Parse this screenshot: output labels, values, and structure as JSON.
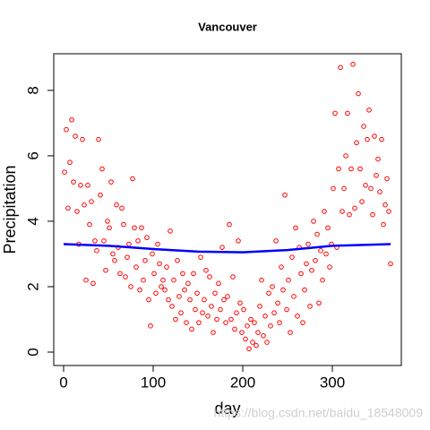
{
  "chart_data": {
    "type": "scatter",
    "title": "Vancouver",
    "xlabel": "day",
    "ylabel": "Precipitation",
    "annotation": "https://blog.csdn.net/baidu_18548009",
    "xlim": [
      -11,
      377
    ],
    "ylim": [
      -0.41,
      9.12
    ],
    "xticks": [
      0,
      100,
      200,
      300
    ],
    "yticks": [
      0,
      2,
      4,
      6,
      8
    ],
    "series": [
      {
        "type": "scatter",
        "color": "#ff0000",
        "x": [
          1,
          3,
          5,
          7,
          9,
          11,
          13,
          15,
          17,
          19,
          21,
          23,
          25,
          27,
          29,
          31,
          33,
          35,
          37,
          39,
          41,
          43,
          45,
          47,
          49,
          51,
          53,
          55,
          57,
          59,
          61,
          63,
          65,
          67,
          69,
          71,
          73,
          75,
          77,
          79,
          81,
          83,
          85,
          87,
          89,
          91,
          93,
          95,
          97,
          99,
          101,
          103,
          105,
          107,
          109,
          111,
          113,
          115,
          117,
          119,
          121,
          123,
          125,
          127,
          129,
          131,
          133,
          135,
          137,
          139,
          141,
          143,
          145,
          147,
          149,
          151,
          153,
          155,
          157,
          159,
          161,
          163,
          165,
          167,
          169,
          171,
          173,
          175,
          177,
          179,
          181,
          183,
          185,
          187,
          189,
          191,
          193,
          195,
          197,
          199,
          201,
          203,
          205,
          207,
          209,
          211,
          213,
          215,
          217,
          219,
          221,
          223,
          225,
          227,
          229,
          231,
          233,
          235,
          237,
          239,
          241,
          243,
          245,
          247,
          249,
          251,
          253,
          255,
          257,
          259,
          261,
          263,
          265,
          267,
          269,
          271,
          273,
          275,
          277,
          279,
          281,
          283,
          285,
          287,
          289,
          291,
          293,
          295,
          297,
          299,
          301,
          303,
          305,
          307,
          309,
          311,
          313,
          315,
          317,
          319,
          321,
          323,
          325,
          327,
          329,
          331,
          333,
          335,
          337,
          339,
          341,
          343,
          345,
          347,
          349,
          351,
          353,
          355,
          357,
          359,
          361,
          363,
          365
        ],
        "values": [
          5.5,
          6.8,
          4.4,
          5.8,
          7.1,
          5.2,
          6.6,
          4.3,
          3.3,
          5.1,
          6.5,
          4.5,
          2.2,
          5.1,
          3.9,
          4.6,
          2.1,
          3.4,
          3.1,
          6.5,
          4.8,
          5.6,
          3.4,
          2.5,
          4.0,
          3.8,
          5.2,
          3.0,
          2.8,
          4.5,
          3.2,
          2.4,
          4.4,
          3.9,
          2.3,
          2.9,
          3.3,
          2.0,
          5.3,
          3.8,
          2.6,
          3.4,
          1.9,
          3.8,
          2.2,
          2.8,
          3.5,
          1.6,
          0.8,
          3.0,
          2.4,
          1.8,
          3.3,
          2.7,
          2.0,
          2.2,
          1.9,
          2.6,
          1.6,
          3.7,
          1.4,
          2.2,
          1.0,
          2.8,
          1.7,
          1.2,
          2.4,
          1.9,
          0.9,
          2.1,
          1.6,
          0.7,
          2.4,
          1.3,
          1.8,
          0.9,
          2.9,
          1.2,
          1.6,
          2.5,
          1.1,
          2.3,
          1.4,
          0.6,
          1.8,
          1.0,
          2.1,
          1.3,
          3.2,
          1.6,
          0.9,
          1.7,
          3.9,
          1.0,
          2.3,
          0.7,
          1.2,
          3.4,
          1.5,
          0.6,
          1.3,
          0.4,
          0.8,
          0.1,
          1.0,
          0.3,
          0.9,
          0.2,
          0.6,
          1.4,
          2.2,
          0.5,
          1.1,
          0.3,
          1.8,
          0.8,
          2.0,
          1.2,
          3.4,
          1.5,
          0.9,
          2.6,
          1.9,
          4.8,
          1.3,
          2.2,
          0.6,
          2.9,
          1.7,
          3.8,
          1.1,
          3.2,
          2.4,
          0.9,
          1.9,
          2.7,
          3.3,
          1.4,
          2.5,
          4.0,
          2.8,
          3.6,
          1.5,
          3.1,
          2.2,
          4.3,
          3.0,
          3.8,
          2.6,
          3.3,
          5.0,
          7.3,
          3.2,
          5.6,
          8.7,
          4.3,
          5.0,
          6.0,
          7.3,
          4.2,
          5.6,
          8.8,
          4.4,
          6.4,
          7.9,
          5.6,
          4.6,
          6.9,
          5.1,
          6.5,
          7.4,
          5.0,
          4.2,
          6.6,
          5.4,
          5.9,
          4.9,
          6.5,
          3.9,
          4.5,
          5.3,
          4.3,
          2.7
        ]
      },
      {
        "type": "line",
        "color": "#0000ff",
        "x": [
          0,
          50,
          100,
          150,
          200,
          250,
          300,
          365
        ],
        "values": [
          3.3,
          3.25,
          3.15,
          3.07,
          3.05,
          3.12,
          3.25,
          3.3
        ]
      }
    ]
  }
}
